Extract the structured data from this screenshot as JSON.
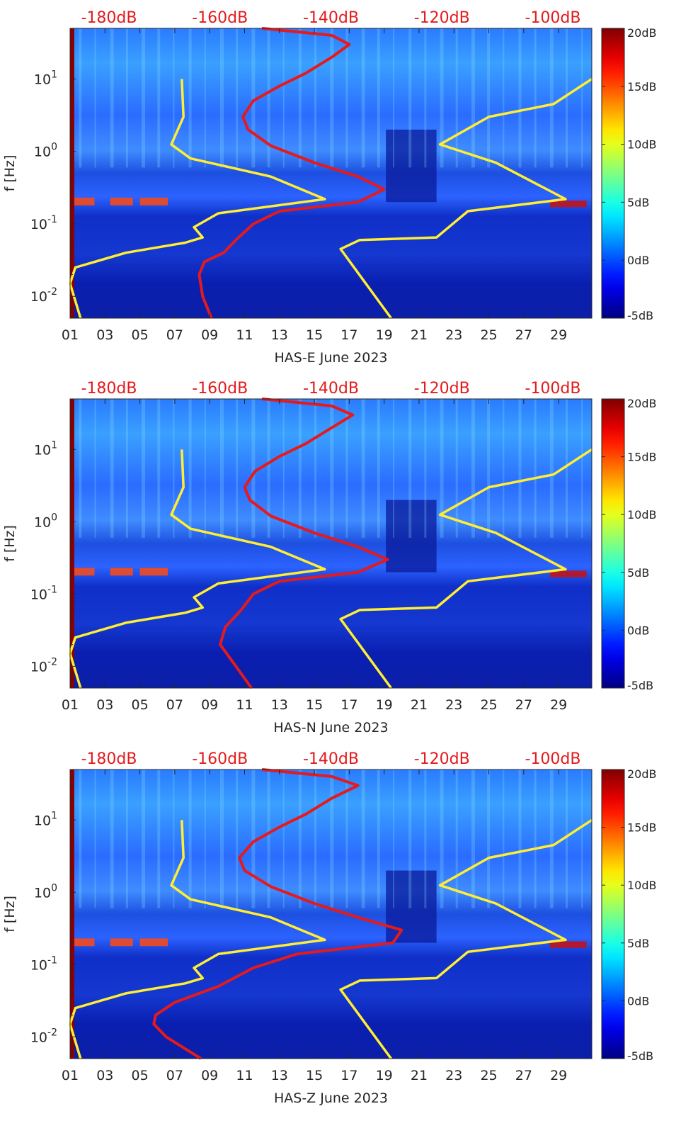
{
  "chart_data": [
    {
      "type": "heatmap",
      "title": "",
      "xlabel": "HAS-E June 2023",
      "ylabel": "f [Hz]",
      "x_ticks": [
        "01",
        "03",
        "05",
        "07",
        "09",
        "11",
        "13",
        "15",
        "17",
        "19",
        "21",
        "23",
        "25",
        "27",
        "29"
      ],
      "y_ticks": [
        "10^{-2}",
        "10^{-1}",
        "10^{0}",
        "10^{1}"
      ],
      "y_scale": "log",
      "ylim": [
        0.005,
        50
      ],
      "xlim": [
        1,
        30.9
      ],
      "top_axis_ticks": [
        "-180dB",
        "-160dB",
        "-140dB",
        "-120dB",
        "-100dB"
      ],
      "top_axis_color": "#e41a1c",
      "colorbar": {
        "ticks": [
          "20dB",
          "15dB",
          "10dB",
          "5dB",
          "0dB",
          "-5dB"
        ],
        "range": [
          -5,
          20
        ],
        "colormap": "jet"
      },
      "series": [
        {
          "color": "#ffee33",
          "points": [
            [
              1.6,
              0.005
            ],
            [
              1.0,
              0.015
            ],
            [
              1.3,
              0.025
            ],
            [
              4.2,
              0.04
            ],
            [
              7.6,
              0.055
            ],
            [
              8.6,
              0.065
            ],
            [
              8.1,
              0.09
            ],
            [
              9.5,
              0.14
            ],
            [
              15.6,
              0.22
            ],
            [
              12.5,
              0.45
            ],
            [
              7.9,
              0.8
            ],
            [
              6.8,
              1.25
            ],
            [
              7.5,
              3.0
            ],
            [
              7.4,
              10.0
            ]
          ]
        },
        {
          "color": "#ffee33",
          "points": [
            [
              19.4,
              0.005
            ],
            [
              16.5,
              0.045
            ],
            [
              17.6,
              0.06
            ],
            [
              22.0,
              0.065
            ],
            [
              23.8,
              0.15
            ],
            [
              29.4,
              0.22
            ],
            [
              25.4,
              0.7
            ],
            [
              22.2,
              1.25
            ],
            [
              25.0,
              3.0
            ],
            [
              28.7,
              4.5
            ],
            [
              30.9,
              10.0
            ]
          ]
        },
        {
          "color": "#e41a1c",
          "points": [
            [
              9.1,
              0.005
            ],
            [
              8.6,
              0.01
            ],
            [
              8.4,
              0.02
            ],
            [
              8.7,
              0.03
            ],
            [
              9.8,
              0.04
            ],
            [
              10.5,
              0.06
            ],
            [
              11.5,
              0.1
            ],
            [
              13.0,
              0.15
            ],
            [
              17.5,
              0.2
            ],
            [
              19.0,
              0.3
            ],
            [
              17.5,
              0.45
            ],
            [
              15.0,
              0.7
            ],
            [
              12.5,
              1.2
            ],
            [
              11.2,
              2.0
            ],
            [
              10.9,
              3.0
            ],
            [
              11.5,
              5.0
            ],
            [
              13.0,
              8.0
            ],
            [
              14.5,
              12.0
            ],
            [
              16.0,
              20.0
            ],
            [
              17.0,
              30.0
            ],
            [
              16.0,
              40.0
            ],
            [
              12.0,
              50.0
            ]
          ]
        }
      ]
    },
    {
      "type": "heatmap",
      "title": "",
      "xlabel": "HAS-N June 2023",
      "ylabel": "f [Hz]",
      "x_ticks": [
        "01",
        "03",
        "05",
        "07",
        "09",
        "11",
        "13",
        "15",
        "17",
        "19",
        "21",
        "23",
        "25",
        "27",
        "29"
      ],
      "y_ticks": [
        "10^{-2}",
        "10^{-1}",
        "10^{0}",
        "10^{1}"
      ],
      "y_scale": "log",
      "ylim": [
        0.005,
        50
      ],
      "xlim": [
        1,
        30.9
      ],
      "top_axis_ticks": [
        "-180dB",
        "-160dB",
        "-140dB",
        "-120dB",
        "-100dB"
      ],
      "top_axis_color": "#e41a1c",
      "colorbar": {
        "ticks": [
          "20dB",
          "15dB",
          "10dB",
          "5dB",
          "0dB",
          "-5dB"
        ],
        "range": [
          -5,
          20
        ],
        "colormap": "jet"
      },
      "series": [
        {
          "color": "#ffee33",
          "points": [
            [
              1.6,
              0.005
            ],
            [
              1.0,
              0.015
            ],
            [
              1.3,
              0.025
            ],
            [
              4.2,
              0.04
            ],
            [
              7.6,
              0.055
            ],
            [
              8.6,
              0.065
            ],
            [
              8.1,
              0.09
            ],
            [
              9.5,
              0.14
            ],
            [
              15.6,
              0.22
            ],
            [
              12.5,
              0.45
            ],
            [
              7.9,
              0.8
            ],
            [
              6.8,
              1.25
            ],
            [
              7.5,
              3.0
            ],
            [
              7.4,
              10.0
            ]
          ]
        },
        {
          "color": "#ffee33",
          "points": [
            [
              19.4,
              0.005
            ],
            [
              16.5,
              0.045
            ],
            [
              17.6,
              0.06
            ],
            [
              22.0,
              0.065
            ],
            [
              23.8,
              0.15
            ],
            [
              29.4,
              0.22
            ],
            [
              25.4,
              0.7
            ],
            [
              22.2,
              1.25
            ],
            [
              25.0,
              3.0
            ],
            [
              28.7,
              4.5
            ],
            [
              30.9,
              10.0
            ]
          ]
        },
        {
          "color": "#e41a1c",
          "points": [
            [
              11.4,
              0.005
            ],
            [
              10.5,
              0.01
            ],
            [
              9.6,
              0.02
            ],
            [
              9.9,
              0.035
            ],
            [
              10.8,
              0.06
            ],
            [
              11.5,
              0.1
            ],
            [
              13.0,
              0.15
            ],
            [
              17.5,
              0.2
            ],
            [
              19.2,
              0.3
            ],
            [
              17.5,
              0.45
            ],
            [
              15.0,
              0.7
            ],
            [
              12.5,
              1.2
            ],
            [
              11.3,
              2.0
            ],
            [
              11.0,
              3.0
            ],
            [
              11.6,
              5.0
            ],
            [
              13.0,
              8.0
            ],
            [
              14.5,
              12.0
            ],
            [
              16.0,
              20.0
            ],
            [
              17.2,
              30.0
            ],
            [
              16.0,
              40.0
            ],
            [
              12.0,
              50.0
            ]
          ]
        }
      ]
    },
    {
      "type": "heatmap",
      "title": "",
      "xlabel": "HAS-Z June 2023",
      "ylabel": "f [Hz]",
      "x_ticks": [
        "01",
        "03",
        "05",
        "07",
        "09",
        "11",
        "13",
        "15",
        "17",
        "19",
        "21",
        "23",
        "25",
        "27",
        "29"
      ],
      "y_ticks": [
        "10^{-2}",
        "10^{-1}",
        "10^{0}",
        "10^{1}"
      ],
      "y_scale": "log",
      "ylim": [
        0.005,
        50
      ],
      "xlim": [
        1,
        30.9
      ],
      "top_axis_ticks": [
        "-180dB",
        "-160dB",
        "-140dB",
        "-120dB",
        "-100dB"
      ],
      "top_axis_color": "#e41a1c",
      "colorbar": {
        "ticks": [
          "20dB",
          "15dB",
          "10dB",
          "5dB",
          "0dB",
          "-5dB"
        ],
        "range": [
          -5,
          20
        ],
        "colormap": "jet"
      },
      "series": [
        {
          "color": "#ffee33",
          "points": [
            [
              1.6,
              0.005
            ],
            [
              1.0,
              0.015
            ],
            [
              1.3,
              0.025
            ],
            [
              4.2,
              0.04
            ],
            [
              7.6,
              0.055
            ],
            [
              8.6,
              0.065
            ],
            [
              8.1,
              0.09
            ],
            [
              9.5,
              0.14
            ],
            [
              15.6,
              0.22
            ],
            [
              12.5,
              0.45
            ],
            [
              7.9,
              0.8
            ],
            [
              6.8,
              1.25
            ],
            [
              7.5,
              3.0
            ],
            [
              7.4,
              10.0
            ]
          ]
        },
        {
          "color": "#ffee33",
          "points": [
            [
              19.4,
              0.005
            ],
            [
              16.5,
              0.045
            ],
            [
              17.6,
              0.06
            ],
            [
              22.0,
              0.065
            ],
            [
              23.8,
              0.15
            ],
            [
              29.4,
              0.22
            ],
            [
              25.4,
              0.7
            ],
            [
              22.2,
              1.25
            ],
            [
              25.0,
              3.0
            ],
            [
              28.7,
              4.5
            ],
            [
              30.9,
              10.0
            ]
          ]
        },
        {
          "color": "#e41a1c",
          "points": [
            [
              8.5,
              0.005
            ],
            [
              6.5,
              0.01
            ],
            [
              5.8,
              0.015
            ],
            [
              5.9,
              0.02
            ],
            [
              7.0,
              0.03
            ],
            [
              9.5,
              0.05
            ],
            [
              11.5,
              0.09
            ],
            [
              14.0,
              0.14
            ],
            [
              19.5,
              0.2
            ],
            [
              20.0,
              0.3
            ],
            [
              17.5,
              0.45
            ],
            [
              15.0,
              0.7
            ],
            [
              12.5,
              1.2
            ],
            [
              11.0,
              2.0
            ],
            [
              10.7,
              3.0
            ],
            [
              11.5,
              5.0
            ],
            [
              13.0,
              8.0
            ],
            [
              14.5,
              12.0
            ],
            [
              16.0,
              20.0
            ],
            [
              17.5,
              30.0
            ],
            [
              16.0,
              40.0
            ],
            [
              12.0,
              50.0
            ]
          ]
        }
      ]
    }
  ]
}
